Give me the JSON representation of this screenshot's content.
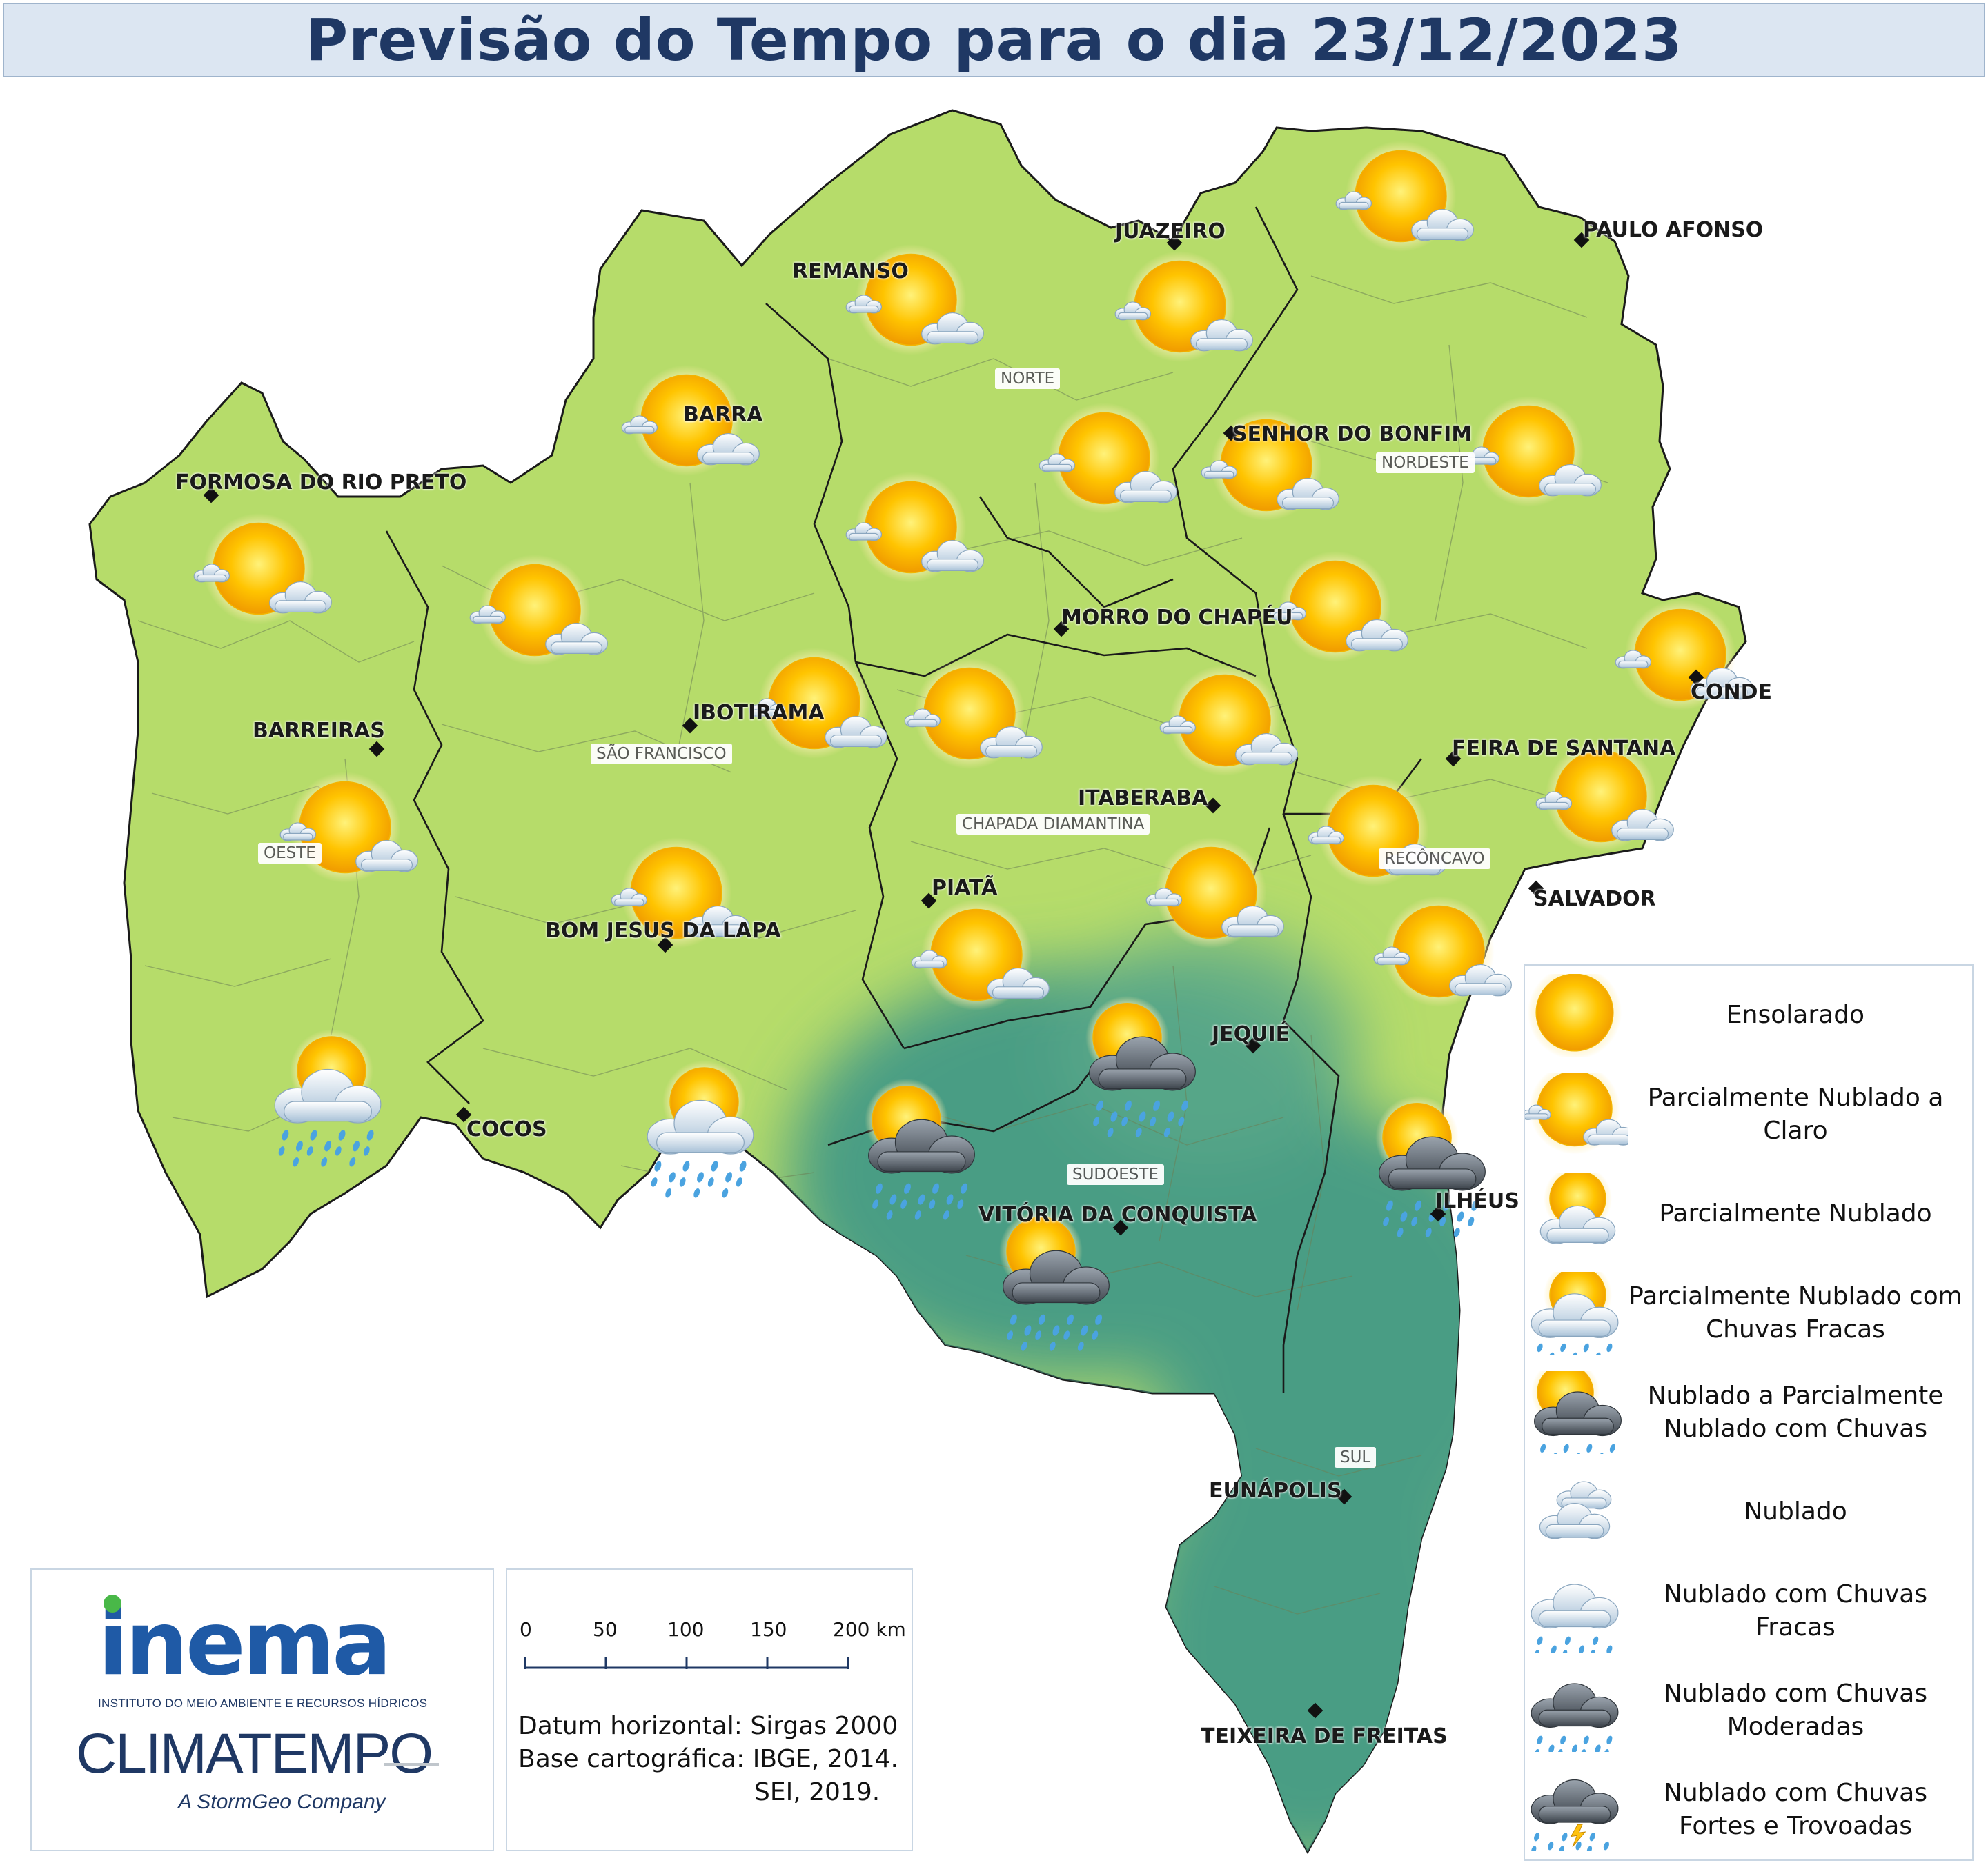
{
  "header": {
    "title": "Previsão do Tempo para o dia 23/12/2023"
  },
  "colors": {
    "dry": "#b6dc6a",
    "wet": "#4a9d84",
    "border": "#1a1a1a",
    "title": "#1f3864"
  },
  "cities": [
    {
      "id": "juazeiro",
      "name": "JUAZEIRO"
    },
    {
      "id": "paulo-afonso",
      "name": "PAULO AFONSO"
    },
    {
      "id": "remanso",
      "name": "REMANSO"
    },
    {
      "id": "barra",
      "name": "BARRA"
    },
    {
      "id": "senhor-do-bonfim",
      "name": "SENHOR DO BONFIM"
    },
    {
      "id": "formosa",
      "name": "FORMOSA DO RIO PRETO"
    },
    {
      "id": "morro-do-chapeu",
      "name": "MORRO DO CHAPÉU"
    },
    {
      "id": "conde",
      "name": "CONDE"
    },
    {
      "id": "ibotirama",
      "name": "IBOTIRAMA"
    },
    {
      "id": "barreiras",
      "name": "BARREIRAS"
    },
    {
      "id": "feira",
      "name": "FEIRA DE SANTANA"
    },
    {
      "id": "itaberaba",
      "name": "ITABERABA"
    },
    {
      "id": "piata",
      "name": "PIATÃ"
    },
    {
      "id": "bom-jesus",
      "name": "BOM JESUS DA LAPA"
    },
    {
      "id": "salvador",
      "name": "SALVADOR"
    },
    {
      "id": "jequie",
      "name": "JEQUIÉ"
    },
    {
      "id": "cocos",
      "name": "COCOS"
    },
    {
      "id": "ilheus",
      "name": "ILHÉUS"
    },
    {
      "id": "vitoria",
      "name": "VITÓRIA DA CONQUISTA"
    },
    {
      "id": "eunapolis",
      "name": "EUNÁPOLIS"
    },
    {
      "id": "teixeira",
      "name": "TEIXEIRA DE FREITAS"
    }
  ],
  "regions": [
    {
      "id": "norte",
      "name": "NORTE"
    },
    {
      "id": "nordeste",
      "name": "NORDESTE"
    },
    {
      "id": "sao-francisco",
      "name": "SÃO FRANCISCO"
    },
    {
      "id": "chapada",
      "name": "CHAPADA DIAMANTINA"
    },
    {
      "id": "oeste",
      "name": "OESTE"
    },
    {
      "id": "reconcavo",
      "name": "RECÔNCAVO"
    },
    {
      "id": "sudoeste",
      "name": "SUDOESTE"
    },
    {
      "id": "sul",
      "name": "SUL"
    }
  ],
  "map_icons": [
    {
      "id": "icon-1",
      "condition": "partly-cloudy-clear"
    },
    {
      "id": "icon-2",
      "condition": "partly-cloudy-clear"
    },
    {
      "id": "icon-3",
      "condition": "partly-cloudy-clear"
    },
    {
      "id": "icon-4",
      "condition": "partly-cloudy-clear"
    },
    {
      "id": "icon-5",
      "condition": "partly-cloudy-clear"
    },
    {
      "id": "icon-6",
      "condition": "partly-cloudy-clear"
    },
    {
      "id": "icon-7",
      "condition": "partly-cloudy-clear"
    },
    {
      "id": "icon-8",
      "condition": "partly-cloudy-clear"
    },
    {
      "id": "icon-9",
      "condition": "partly-cloudy-clear"
    },
    {
      "id": "icon-10",
      "condition": "partly-cloudy-clear"
    },
    {
      "id": "icon-11",
      "condition": "partly-cloudy-clear"
    },
    {
      "id": "icon-12",
      "condition": "partly-cloudy-clear"
    },
    {
      "id": "icon-13",
      "condition": "partly-cloudy-clear"
    },
    {
      "id": "icon-14",
      "condition": "partly-cloudy-clear"
    },
    {
      "id": "icon-15",
      "condition": "partly-cloudy-clear"
    },
    {
      "id": "icon-16",
      "condition": "partly-cloudy-clear"
    },
    {
      "id": "icon-17",
      "condition": "partly-cloudy-clear"
    },
    {
      "id": "icon-18",
      "condition": "partly-cloudy-clear"
    },
    {
      "id": "icon-19",
      "condition": "partly-cloudy-clear"
    },
    {
      "id": "icon-20",
      "condition": "partly-cloudy-clear"
    },
    {
      "id": "icon-21",
      "condition": "partly-cloudy-clear"
    },
    {
      "id": "icon-22",
      "condition": "partly-cloudy-clear"
    },
    {
      "id": "icon-23",
      "condition": "partly-cloudy-light-rain"
    },
    {
      "id": "icon-24",
      "condition": "partly-cloudy-light-rain"
    },
    {
      "id": "icon-25",
      "condition": "cloudy-partly-cloudy-rain"
    },
    {
      "id": "icon-26",
      "condition": "cloudy-partly-cloudy-rain"
    },
    {
      "id": "icon-27",
      "condition": "cloudy-partly-cloudy-rain"
    },
    {
      "id": "icon-28",
      "condition": "cloudy-partly-cloudy-rain"
    }
  ],
  "legend": {
    "items": [
      {
        "condition": "sunny",
        "label": "Ensolarado"
      },
      {
        "condition": "partly-cloudy-clear",
        "label": "Parcialmente Nublado a Claro"
      },
      {
        "condition": "partly-cloudy",
        "label": "Parcialmente Nublado"
      },
      {
        "condition": "partly-cloudy-light-rain",
        "label": "Parcialmente Nublado com Chuvas Fracas"
      },
      {
        "condition": "cloudy-partly-cloudy-rain",
        "label": "Nublado a Parcialmente Nublado com Chuvas"
      },
      {
        "condition": "cloudy",
        "label": "Nublado"
      },
      {
        "condition": "cloudy-light-rain",
        "label": "Nublado com Chuvas Fracas"
      },
      {
        "condition": "cloudy-moderate-rain",
        "label": "Nublado com Chuvas Moderadas"
      },
      {
        "condition": "cloudy-heavy-rain-thunder",
        "label": "Nublado com Chuvas Fortes e Trovoadas"
      }
    ]
  },
  "logos": {
    "inema": "inema",
    "inema_subtitle": "INSTITUTO DO MEIO AMBIENTE E RECURSOS HÍDRICOS",
    "climatempo": "CLIMATEMPO",
    "stormgeo": "A StormGeo Company"
  },
  "scale": {
    "ticks": [
      "0",
      "50",
      "100",
      "150",
      "200 km"
    ],
    "datum": "Datum horizontal: Sirgas 2000",
    "base": "Base cartográfica: IBGE, 2014.",
    "base2": "SEI, 2019."
  }
}
